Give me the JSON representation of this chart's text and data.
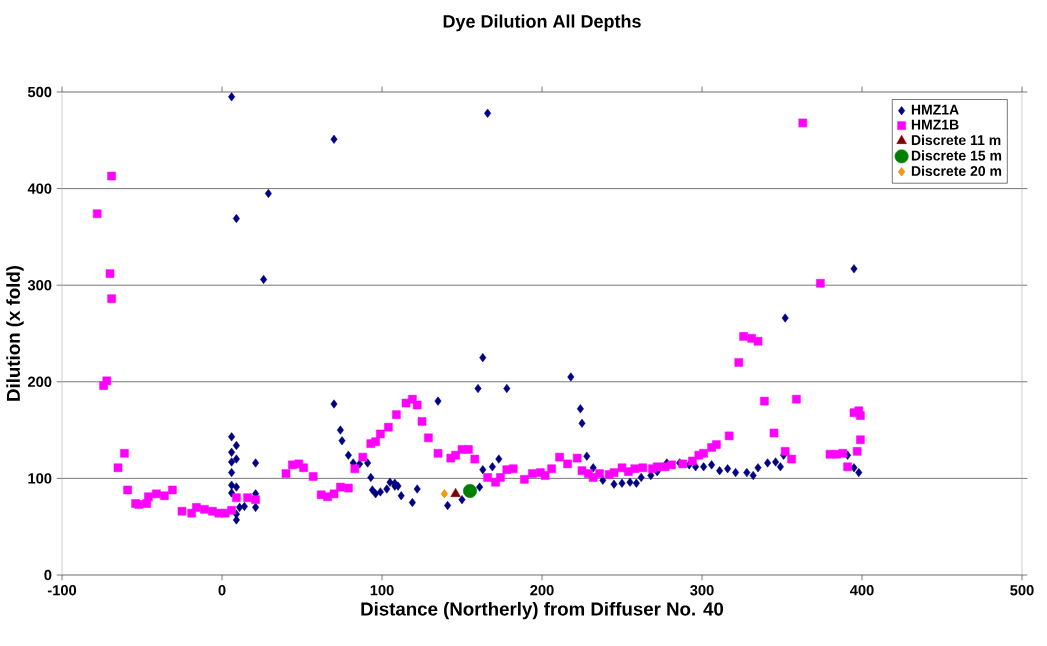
{
  "chart_data": {
    "type": "scatter",
    "title": "Dye Dilution All Depths",
    "xlabel": "Distance (Northerly) from Diffuser No. 40",
    "ylabel": "Dilution (x fold)",
    "xlim": [
      -100,
      500
    ],
    "ylim": [
      0,
      500
    ],
    "xticks": [
      -100,
      0,
      100,
      200,
      300,
      400,
      500
    ],
    "yticks": [
      0,
      100,
      200,
      300,
      400,
      500
    ],
    "grid": "y",
    "legend": "top right",
    "series": [
      {
        "name": "HMZ1A",
        "color": "#000080",
        "marker": "diamond",
        "x": [
          6,
          9,
          29,
          26,
          70,
          166,
          163,
          160,
          178,
          218,
          224,
          225,
          228,
          395,
          352,
          6,
          9,
          6,
          9,
          6,
          6,
          6,
          9,
          6,
          11,
          9,
          9,
          14,
          21,
          21,
          21,
          70,
          74,
          75,
          79,
          82,
          86,
          91,
          93,
          94,
          96,
          99,
          103,
          105,
          108,
          108,
          110,
          112,
          119,
          122,
          135,
          141,
          150,
          161,
          163,
          169,
          173,
          232,
          238,
          245,
          250,
          255,
          259,
          262,
          268,
          272,
          278,
          286,
          292,
          296,
          301,
          306,
          311,
          316,
          321,
          328,
          332,
          335,
          341,
          346,
          349,
          351,
          391,
          395,
          398
        ],
        "values": [
          495,
          369,
          395,
          306,
          451,
          478,
          225,
          193,
          193,
          205,
          172,
          157,
          123,
          317,
          266,
          143,
          134,
          127,
          120,
          117,
          106,
          93,
          91,
          85,
          70,
          63,
          57,
          71,
          116,
          84,
          70,
          177,
          150,
          139,
          124,
          116,
          115,
          116,
          101,
          88,
          84,
          86,
          89,
          96,
          95,
          92,
          92,
          82,
          75,
          89,
          180,
          72,
          78,
          91,
          109,
          112,
          120,
          111,
          98,
          94,
          95,
          96,
          95,
          101,
          103,
          107,
          116,
          116,
          114,
          112,
          112,
          114,
          108,
          110,
          106,
          106,
          103,
          111,
          116,
          117,
          112,
          124,
          124,
          111,
          106
        ]
      },
      {
        "name": "HMZ1B",
        "color": "#ff00ff",
        "marker": "square",
        "x": [
          -78,
          -74,
          -72,
          -70,
          -69,
          -69,
          -65,
          -61,
          -59,
          -54,
          -52,
          -47,
          -46,
          -41,
          -36,
          -31,
          -25,
          -19,
          -16,
          -11,
          -6,
          -2,
          2,
          6,
          9,
          16,
          21,
          40,
          44,
          48,
          51,
          57,
          62,
          66,
          70,
          74,
          79,
          83,
          88,
          93,
          96,
          99,
          104,
          109,
          115,
          119,
          122,
          125,
          129,
          135,
          143,
          146,
          150,
          154,
          158,
          166,
          171,
          174,
          178,
          182,
          189,
          194,
          199,
          202,
          206,
          211,
          216,
          222,
          225,
          229,
          232,
          236,
          242,
          245,
          250,
          254,
          258,
          263,
          269,
          272,
          277,
          281,
          288,
          294,
          298,
          301,
          306,
          309,
          317,
          323,
          326,
          331,
          335,
          339,
          345,
          352,
          356,
          359,
          363,
          374,
          380,
          384,
          388,
          391,
          395,
          397,
          398,
          399,
          399
        ],
        "values": [
          374,
          196,
          201,
          312,
          413,
          286,
          111,
          126,
          88,
          74,
          73,
          74,
          81,
          84,
          82,
          88,
          66,
          64,
          70,
          68,
          66,
          64,
          64,
          67,
          80,
          80,
          78,
          105,
          114,
          115,
          111,
          102,
          83,
          81,
          84,
          91,
          90,
          110,
          122,
          136,
          138,
          146,
          153,
          166,
          178,
          182,
          176,
          159,
          142,
          126,
          121,
          124,
          130,
          130,
          120,
          101,
          96,
          101,
          109,
          110,
          99,
          105,
          106,
          103,
          110,
          122,
          115,
          121,
          108,
          105,
          101,
          105,
          104,
          106,
          111,
          107,
          110,
          111,
          110,
          112,
          112,
          114,
          115,
          118,
          124,
          126,
          132,
          135,
          144,
          220,
          247,
          245,
          242,
          180,
          147,
          128,
          120,
          182,
          468,
          302,
          125,
          125,
          126,
          112,
          168,
          128,
          170,
          165,
          140
        ]
      },
      {
        "name": "Discrete 11 m",
        "color": "#800000",
        "marker": "triangle",
        "x": [
          146
        ],
        "values": [
          84
        ]
      },
      {
        "name": "Discrete 15 m",
        "color": "#008000",
        "marker": "circle",
        "x": [
          155
        ],
        "values": [
          87
        ]
      },
      {
        "name": "Discrete 20 m",
        "color": "#ff9900",
        "marker": "diamond",
        "x": [
          139
        ],
        "values": [
          84
        ]
      }
    ]
  }
}
